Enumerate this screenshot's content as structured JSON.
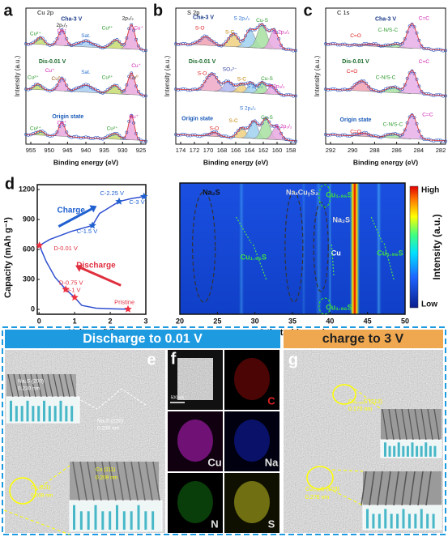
{
  "panels": {
    "a": {
      "label": "a",
      "element": "Cu 2p",
      "xticks": [
        "955",
        "950",
        "945",
        "940",
        "935",
        "930",
        "925"
      ],
      "xlabel": "Binding energy (eV)",
      "ylabel": "Intensity (a.u.)",
      "spectra": [
        {
          "state": "Cha-3 V",
          "labels": [
            "Cu²⁺",
            "2p₁/₂",
            "Cu⁺",
            "Sat.",
            "Cu²⁺",
            "2p₃/₂",
            "Cu⁺"
          ]
        },
        {
          "state": "Dis-0.01 V",
          "labels": [
            "Cu²⁺",
            "Cu⁺",
            "Cu⁰",
            "Sat.",
            "Cu²⁺",
            "Cu⁺",
            "Cu⁰"
          ]
        },
        {
          "state": "Origin state",
          "labels": [
            "Cu²⁺",
            "Cu⁺",
            "Cu²⁺",
            "Cu⁺"
          ]
        }
      ]
    },
    "b": {
      "label": "b",
      "element": "S 2p",
      "xticks": [
        "174",
        "172",
        "170",
        "168",
        "166",
        "164",
        "162",
        "160",
        "158"
      ],
      "xlabel": "Binding energy (eV)",
      "ylabel": "Intensity (a.u.)",
      "spectra": [
        {
          "state": "Cha-3 V",
          "labels": [
            "S-O",
            "S-C",
            "S 2p₁/₂",
            "Cu-S",
            "S 2p₃/₂"
          ]
        },
        {
          "state": "Dis-0.01 V",
          "labels": [
            "S-O",
            "SO₃²⁻",
            "S-C",
            "S 2p₁/₂",
            "Cu-S",
            "S 2p₃/₂"
          ]
        },
        {
          "state": "Origin state",
          "labels": [
            "S 2p₁/₂",
            "S-C",
            "S-O",
            "Cu-S",
            "S 2p₃/₂"
          ]
        }
      ]
    },
    "c": {
      "label": "c",
      "element": "C 1s",
      "xticks": [
        "292",
        "290",
        "288",
        "286",
        "284",
        "282"
      ],
      "xlabel": "Binding energy (eV)",
      "ylabel": "Intensity (a.u.)",
      "spectra": [
        {
          "state": "Cha-3 V",
          "labels": [
            "C=C",
            "C=O",
            "C-N/S-C"
          ]
        },
        {
          "state": "Dis-0.01 V",
          "labels": [
            "C=O",
            "C-N/S-C",
            "C=C"
          ]
        },
        {
          "state": "Origin state",
          "labels": [
            "C=C",
            "C=O",
            "C-N/S-C"
          ]
        }
      ]
    },
    "d": {
      "label": "d",
      "ylabel": "Capacity (mAh g⁻¹)",
      "xlabel": "Voltage (V)",
      "yticks": [
        "0",
        "300",
        "600",
        "900",
        "1200"
      ],
      "xticks": [
        "0",
        "1",
        "2",
        "3"
      ],
      "annotations": [
        "C-2.25 V",
        "C-3 V",
        "C-1.5 V",
        "Charge",
        "D-0.01 V",
        "Discharge",
        "D-0.75 V",
        "D-1 V",
        "Pristine"
      ],
      "map": {
        "xticks": [
          "20",
          "25",
          "30",
          "35",
          "40",
          "45",
          "50"
        ],
        "xlabel": "2 theta (degree)",
        "colorbar_high": "High",
        "colorbar_low": "Low",
        "colorbar_label": "Intensity (a.u.)",
        "annotations": [
          "Na₂S",
          "NaₓCuᵧS₂",
          "Cu₁.₉₆S",
          "Cu₁.₉₆S",
          "Na₂S",
          "Cu",
          "Cu₁.₉₆S",
          "Cu₁.₉₆S"
        ]
      }
    },
    "e": {
      "label": "e",
      "header": "Discharge to 0.01 V",
      "annotations": [
        "Na₂S (200)",
        "0.230 nm",
        "Na₂S (220)",
        "0.230 nm",
        "Cu (111)",
        "0.208 nm",
        "Cu (111)",
        "0.209 nm"
      ]
    },
    "f": {
      "label": "f",
      "scale": "500 nm",
      "maps": [
        "C",
        "Cu",
        "Na",
        "N",
        "S"
      ]
    },
    "g": {
      "label": "g",
      "header": "charge to 3 V",
      "annotations": [
        "Cu₁.₉₆S (212)",
        "0.170 nm",
        "Cu₁.₉₆S (103)",
        "0.276 nm"
      ]
    }
  }
}
